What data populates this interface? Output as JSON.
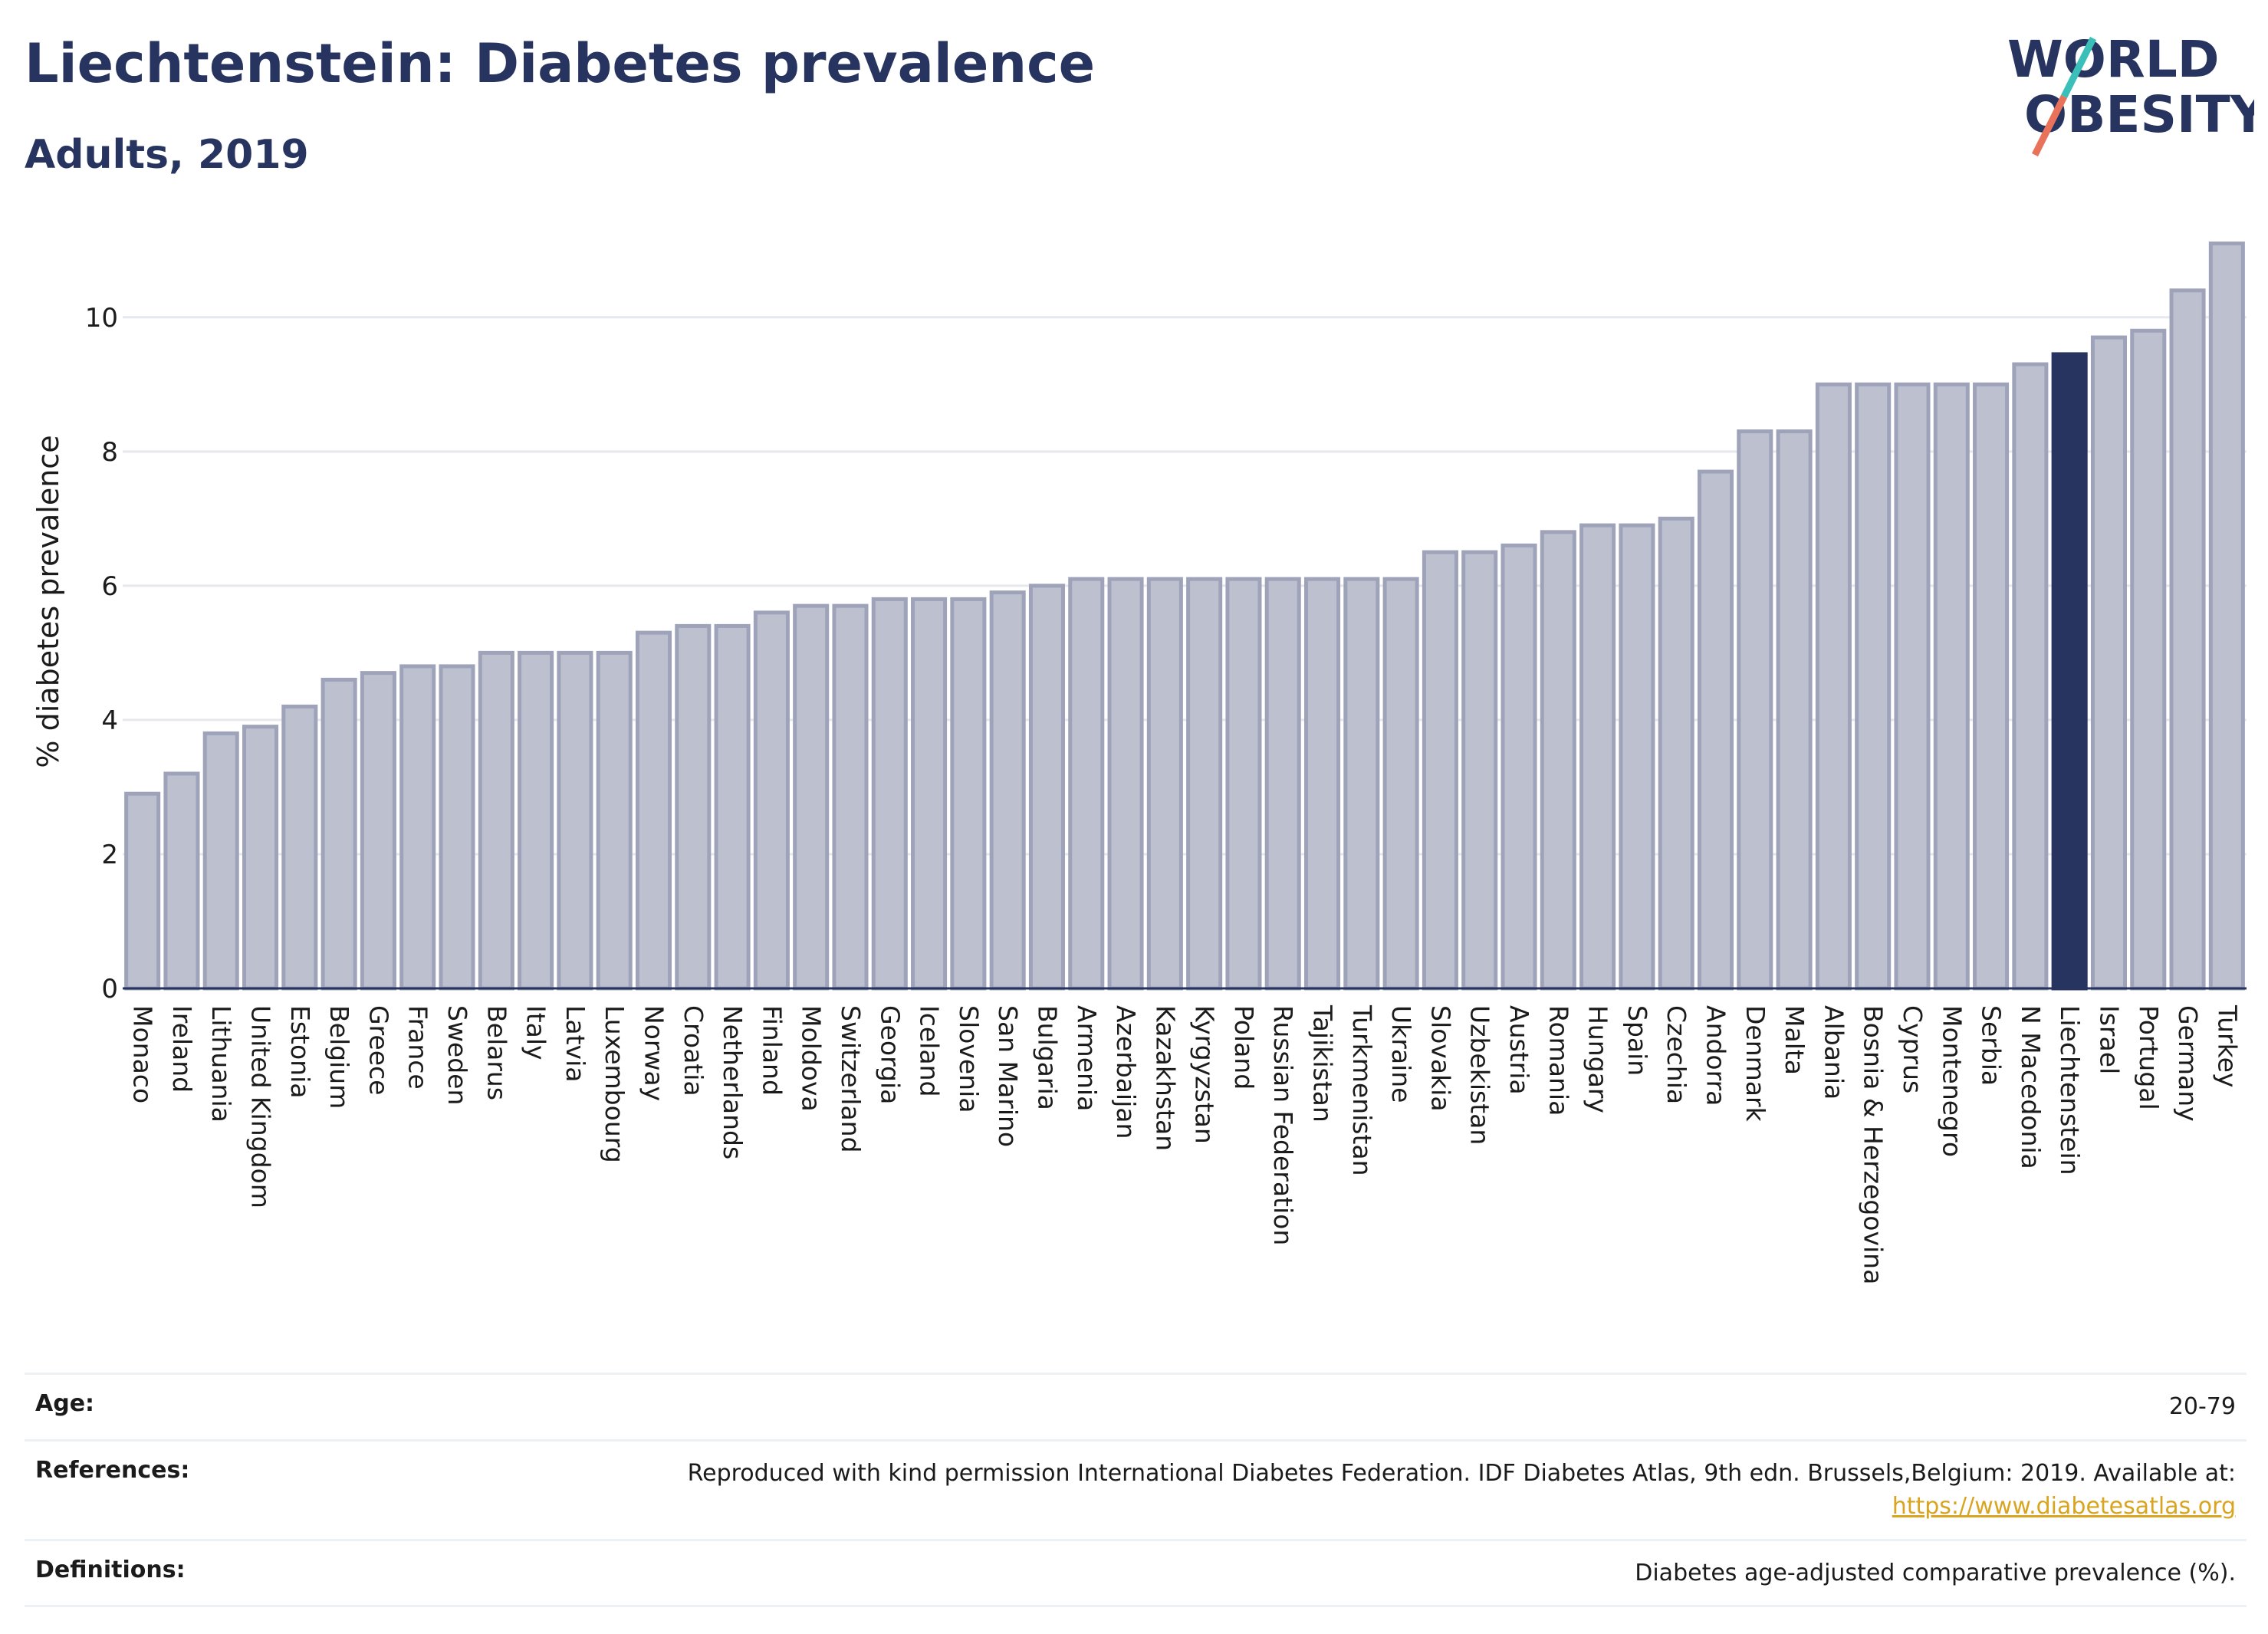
{
  "title": "Liechtenstein: Diabetes prevalence",
  "subtitle": "Adults, 2019",
  "logo": {
    "line1": "WORLD",
    "line2": "OBESITY",
    "accent_colors": [
      "#3bbfb9",
      "#e8735a"
    ]
  },
  "colors": {
    "bar": "#bcc0cf",
    "bar_stroke": "#9ea3ba",
    "highlight": "#283460",
    "grid": "#e6e8ee"
  },
  "chart_data": {
    "type": "bar",
    "ylabel": "% diabetes prevalence",
    "ylim": [
      0,
      11.3
    ],
    "yticks": [
      0,
      2,
      4,
      6,
      8,
      10
    ],
    "highlight": "Liechtenstein",
    "categories": [
      "Monaco",
      "Ireland",
      "Lithuania",
      "United Kingdom",
      "Estonia",
      "Belgium",
      "Greece",
      "France",
      "Sweden",
      "Belarus",
      "Italy",
      "Latvia",
      "Luxembourg",
      "Norway",
      "Croatia",
      "Netherlands",
      "Finland",
      "Moldova",
      "Switzerland",
      "Georgia",
      "Iceland",
      "Slovenia",
      "San Marino",
      "Bulgaria",
      "Armenia",
      "Azerbaijan",
      "Kazakhstan",
      "Kyrgyzstan",
      "Poland",
      "Russian Federation",
      "Tajikistan",
      "Turkmenistan",
      "Ukraine",
      "Slovakia",
      "Uzbekistan",
      "Austria",
      "Romania",
      "Hungary",
      "Spain",
      "Czechia",
      "Andorra",
      "Denmark",
      "Malta",
      "Albania",
      "Bosnia & Herzegovina",
      "Cyprus",
      "Montenegro",
      "Serbia",
      "N Macedonia",
      "Liechtenstein",
      "Israel",
      "Portugal",
      "Germany",
      "Turkey"
    ],
    "values": [
      2.9,
      3.2,
      3.8,
      3.9,
      4.2,
      4.6,
      4.7,
      4.8,
      4.8,
      5.0,
      5.0,
      5.0,
      5.0,
      5.3,
      5.4,
      5.4,
      5.6,
      5.7,
      5.7,
      5.8,
      5.8,
      5.8,
      5.9,
      6.0,
      6.1,
      6.1,
      6.1,
      6.1,
      6.1,
      6.1,
      6.1,
      6.1,
      6.1,
      6.5,
      6.5,
      6.6,
      6.8,
      6.9,
      6.9,
      7.0,
      7.7,
      8.3,
      8.3,
      9.0,
      9.0,
      9.0,
      9.0,
      9.0,
      9.3,
      9.45,
      9.7,
      9.8,
      10.4,
      11.1
    ]
  },
  "footer": {
    "age_label": "Age:",
    "age_value": "20-79",
    "references_label": "References:",
    "references_value": "Reproduced with kind permission International Diabetes Federation. IDF Diabetes Atlas, 9th edn. Brussels,Belgium: 2019. Available at:",
    "references_link": "https://www.diabetesatlas.org",
    "definitions_label": "Definitions:",
    "definitions_value": "Diabetes age-adjusted comparative prevalence (%)."
  }
}
